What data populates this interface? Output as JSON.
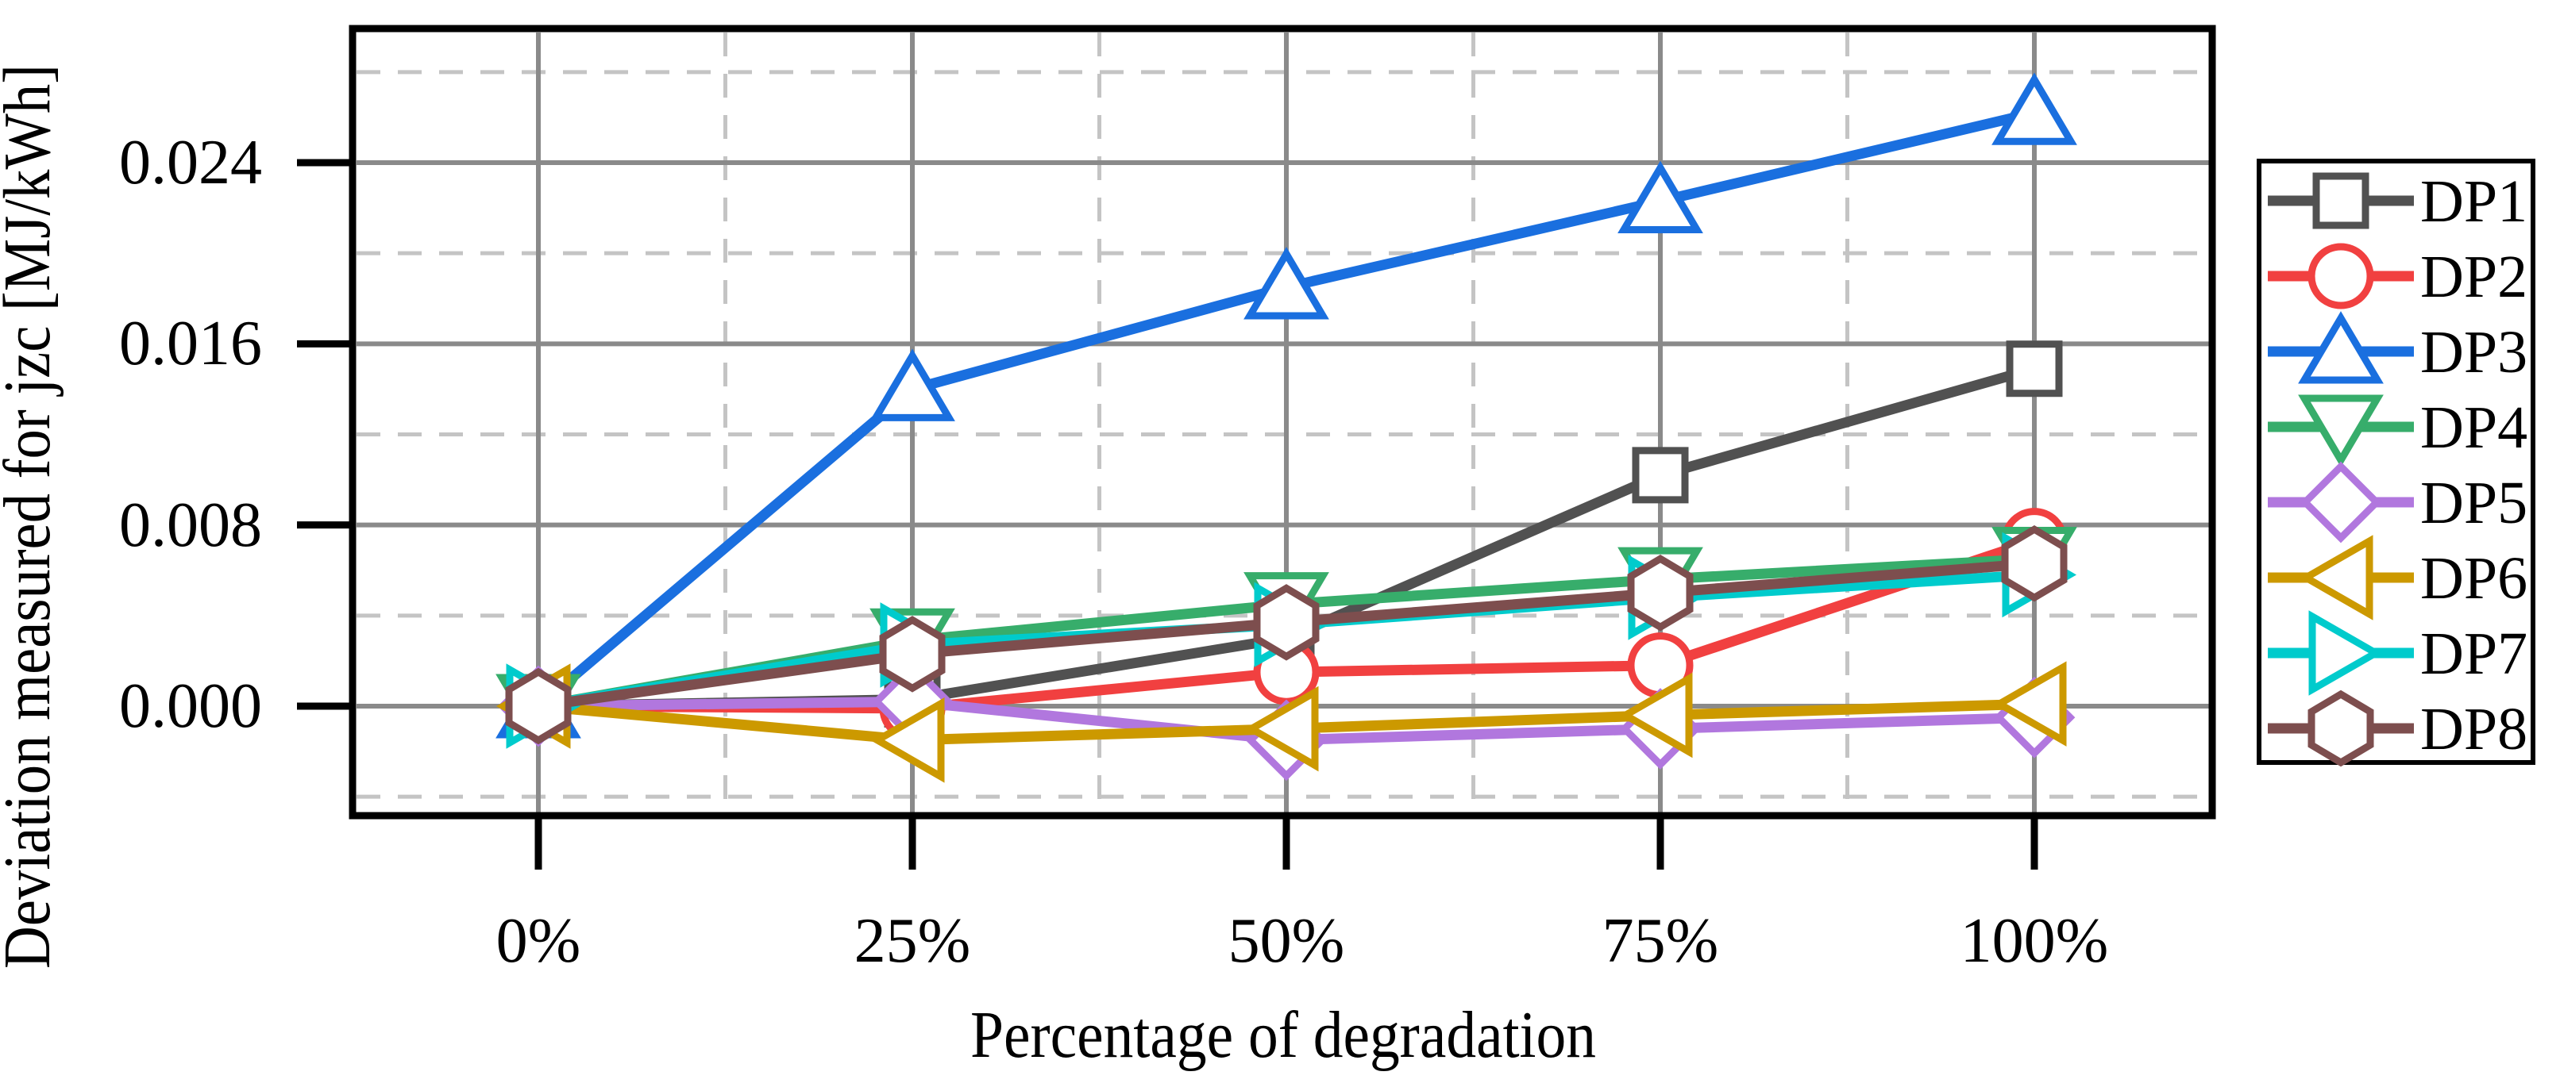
{
  "chart_data": {
    "type": "line",
    "title": "",
    "xlabel": "Percentage of degradation",
    "ylabel": "Deviation measured for jzc [MJ/kWh]",
    "categories": [
      "0%",
      "25%",
      "50%",
      "75%",
      "100%"
    ],
    "x_values_percent": [
      0,
      25,
      50,
      75,
      100
    ],
    "ytick_labels": [
      "0.000",
      "0.008",
      "0.016",
      "0.024"
    ],
    "ytick_values": [
      0.0,
      0.008,
      0.016,
      0.024
    ],
    "ylim": [
      -0.005,
      0.03
    ],
    "grid": {
      "major": "solid",
      "minor": "dashed",
      "minor_y_values": [
        -0.004,
        0.004,
        0.012,
        0.02,
        0.028
      ],
      "minor_x_percent": [
        12.5,
        37.5,
        62.5,
        87.5
      ]
    },
    "legend_position": "right-outside",
    "series": [
      {
        "name": "DP1",
        "color": "#515151",
        "marker": "square",
        "values": [
          0.0,
          0.0003,
          0.003,
          0.0102,
          0.0149
        ]
      },
      {
        "name": "DP2",
        "color": "#F14040",
        "marker": "circle",
        "values": [
          0.0,
          -0.0001,
          0.0015,
          0.0018,
          0.0073
        ]
      },
      {
        "name": "DP3",
        "color": "#1A6FDF",
        "marker": "triangle-up",
        "values": [
          0.0,
          0.014,
          0.0185,
          0.0223,
          0.0262
        ]
      },
      {
        "name": "DP4",
        "color": "#37AD6B",
        "marker": "triangle-down",
        "values": [
          0.0,
          0.0029,
          0.0045,
          0.0056,
          0.0065
        ]
      },
      {
        "name": "DP5",
        "color": "#B177DE",
        "marker": "diamond",
        "values": [
          0.0,
          0.0002,
          -0.0015,
          -0.001,
          -0.0005
        ]
      },
      {
        "name": "DP6",
        "color": "#CC9900",
        "marker": "triangle-left",
        "values": [
          0.0,
          -0.0015,
          -0.001,
          -0.0004,
          0.0001
        ]
      },
      {
        "name": "DP7",
        "color": "#00CBCC",
        "marker": "triangle-right",
        "values": [
          0.0,
          0.0027,
          0.0036,
          0.0048,
          0.0058
        ]
      },
      {
        "name": "DP8",
        "color": "#7D4E4E",
        "marker": "hexagon",
        "values": [
          0.0,
          0.0023,
          0.0037,
          0.005,
          0.0063
        ]
      }
    ]
  }
}
